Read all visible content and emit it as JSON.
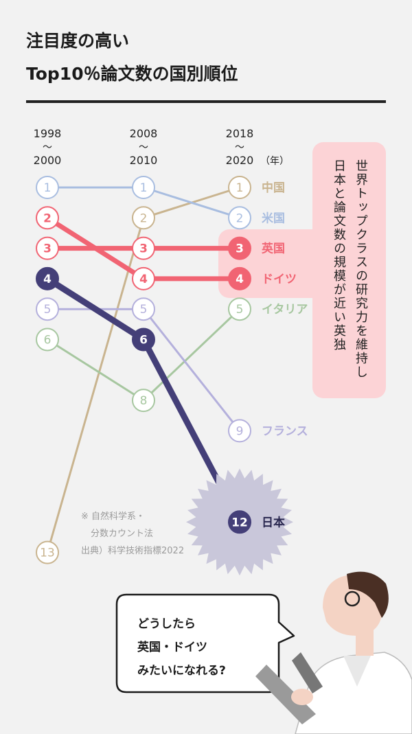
{
  "header": {
    "line1": "注目度の高い",
    "line2": "Top10％論文数の国別順位"
  },
  "callout": {
    "line1": "世界トップクラスの研究力を維持し",
    "line2": "日本と論文数の規模が近い英独",
    "color": "#fcd3d6"
  },
  "notes": {
    "line1": "※ 自然科学系・",
    "line2": "分数カウント法",
    "source": "出典）科学技術指標2022"
  },
  "speech": {
    "line1": "どうしたら",
    "line2": "英国・ドイツ",
    "line3": "みたいになれる?"
  },
  "chart_data": {
    "type": "slope",
    "periods": [
      {
        "top": "1998",
        "bottom": "2000"
      },
      {
        "top": "2008",
        "bottom": "2010"
      },
      {
        "top": "2018",
        "bottom": "2020",
        "suffix": "（年）"
      }
    ],
    "series": [
      {
        "name": "中国",
        "ranks": [
          null,
          2,
          1
        ],
        "start_rank": 13,
        "color": "#c9b48f",
        "emphasis": false
      },
      {
        "name": "米国",
        "ranks": [
          1,
          1,
          2
        ],
        "color": "#a8bde0",
        "emphasis": false
      },
      {
        "name": "英国",
        "ranks": [
          3,
          3,
          3
        ],
        "color": "#f16473",
        "emphasis": true
      },
      {
        "name": "ドイツ",
        "ranks": [
          2,
          4,
          4
        ],
        "color": "#f16473",
        "emphasis": true
      },
      {
        "name": "イタリア",
        "ranks": [
          6,
          8,
          5
        ],
        "color": "#a7c7a0",
        "emphasis": false
      },
      {
        "name": "フランス",
        "ranks": [
          5,
          5,
          9
        ],
        "color": "#b4b0dc",
        "emphasis": false
      },
      {
        "name": "日本",
        "ranks": [
          4,
          6,
          12
        ],
        "color": "#443f78",
        "emphasis": "strong"
      }
    ]
  }
}
